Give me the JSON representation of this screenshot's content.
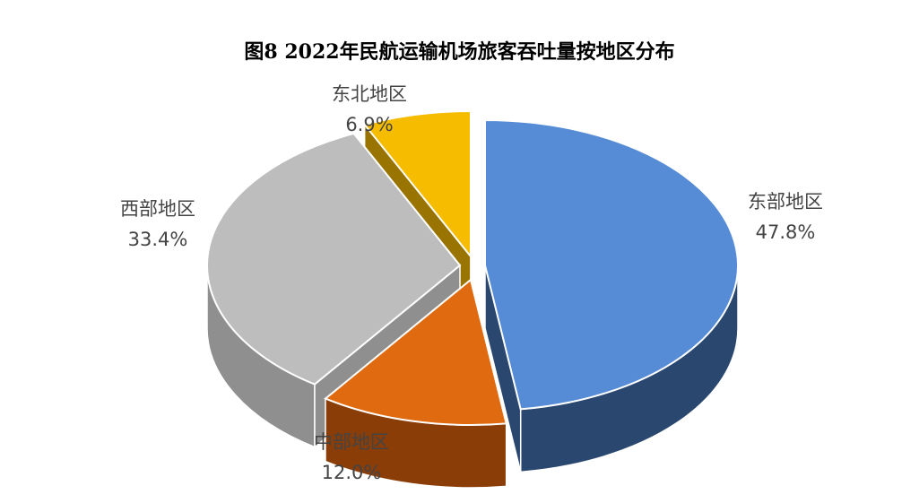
{
  "chart_data": {
    "type": "pie",
    "title": "图8  2022年民航运输机场旅客吞吐量按地区分布",
    "slices": [
      {
        "name": "东部地区",
        "value": 47.8,
        "label": "47.8%",
        "color": "#568BD6",
        "side_color": "#2A4770"
      },
      {
        "name": "中部地区",
        "value": 12.0,
        "label": "12.0%",
        "color": "#E06A0F",
        "side_color": "#8A3D06"
      },
      {
        "name": "西部地区",
        "value": 33.4,
        "label": "33.4%",
        "color": "#BDBDBD",
        "side_color": "#8F8F8F"
      },
      {
        "name": "东北地区",
        "value": 6.9,
        "label": "6.9%",
        "color": "#F5BC00",
        "side_color": "#9A7400"
      }
    ],
    "legend": "none"
  }
}
